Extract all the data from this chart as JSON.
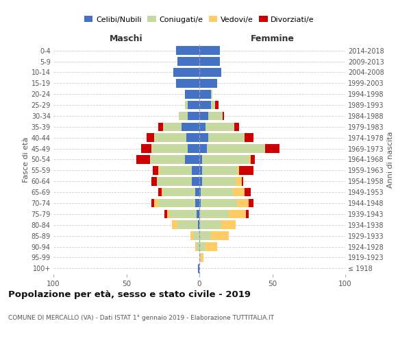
{
  "age_groups": [
    "100+",
    "95-99",
    "90-94",
    "85-89",
    "80-84",
    "75-79",
    "70-74",
    "65-69",
    "60-64",
    "55-59",
    "50-54",
    "45-49",
    "40-44",
    "35-39",
    "30-34",
    "25-29",
    "20-24",
    "15-19",
    "10-14",
    "5-9",
    "0-4"
  ],
  "birth_years": [
    "≤ 1918",
    "1919-1923",
    "1924-1928",
    "1929-1933",
    "1934-1938",
    "1939-1943",
    "1944-1948",
    "1949-1953",
    "1954-1958",
    "1959-1963",
    "1964-1968",
    "1969-1973",
    "1974-1978",
    "1979-1983",
    "1984-1988",
    "1989-1993",
    "1994-1998",
    "1999-2003",
    "2004-2008",
    "2009-2013",
    "2014-2018"
  ],
  "colors": {
    "celibe": "#4472C4",
    "coniugato": "#C5D9A0",
    "vedovo": "#FFCC66",
    "divorziato": "#CC0000"
  },
  "maschi": {
    "celibe": [
      1,
      0,
      0,
      0,
      1,
      2,
      3,
      3,
      5,
      5,
      10,
      8,
      9,
      12,
      8,
      8,
      10,
      16,
      18,
      15,
      16
    ],
    "coniugato": [
      0,
      0,
      2,
      4,
      14,
      18,
      25,
      22,
      24,
      22,
      24,
      25,
      22,
      13,
      6,
      2,
      0,
      0,
      0,
      0,
      0
    ],
    "vedovo": [
      0,
      0,
      1,
      2,
      4,
      2,
      3,
      1,
      0,
      1,
      0,
      0,
      0,
      0,
      0,
      0,
      0,
      0,
      0,
      0,
      0
    ],
    "divorziato": [
      0,
      0,
      0,
      0,
      0,
      2,
      2,
      2,
      4,
      4,
      9,
      7,
      5,
      3,
      0,
      0,
      0,
      0,
      0,
      0,
      0
    ]
  },
  "femmine": {
    "nubile": [
      0,
      0,
      0,
      0,
      0,
      0,
      1,
      1,
      2,
      2,
      2,
      5,
      6,
      4,
      6,
      8,
      8,
      12,
      15,
      14,
      14
    ],
    "coniugata": [
      0,
      1,
      4,
      8,
      15,
      20,
      25,
      22,
      23,
      24,
      32,
      40,
      25,
      20,
      10,
      3,
      1,
      0,
      0,
      0,
      0
    ],
    "vedova": [
      0,
      2,
      8,
      12,
      10,
      12,
      8,
      8,
      4,
      1,
      1,
      0,
      0,
      0,
      0,
      0,
      0,
      0,
      0,
      0,
      0
    ],
    "divorziata": [
      0,
      0,
      0,
      0,
      0,
      2,
      3,
      4,
      1,
      10,
      3,
      10,
      6,
      3,
      1,
      2,
      0,
      0,
      0,
      0,
      0
    ]
  },
  "xlim": 100,
  "xticks": [
    -100,
    -50,
    0,
    50,
    100
  ],
  "xtick_labels": [
    "100",
    "50",
    "0",
    "50",
    "100"
  ],
  "title": "Popolazione per età, sesso e stato civile - 2019",
  "subtitle": "COMUNE DI MERCALLO (VA) - Dati ISTAT 1° gennaio 2019 - Elaborazione TUTTITALIA.IT",
  "ylabel_left": "Fasce di età",
  "ylabel_right": "Anni di nascita",
  "xlabel_maschi": "Maschi",
  "xlabel_femmine": "Femmine",
  "bg_color": "#ffffff",
  "grid_color": "#cccccc",
  "center_line_color": "#9999bb",
  "text_color": "#555555",
  "title_color": "#111111"
}
